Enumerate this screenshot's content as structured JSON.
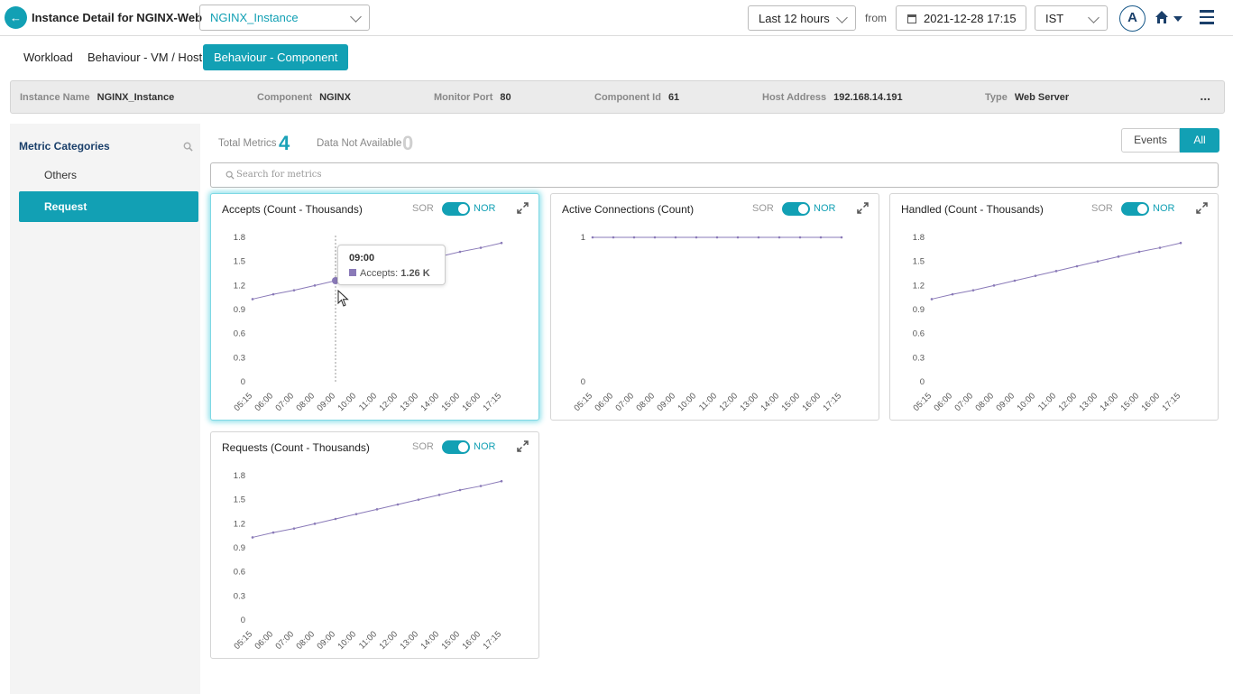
{
  "header": {
    "page_title": "Instance Detail for NGINX-Web",
    "instance_select": "NGINX_Instance",
    "time_range": "Last 12 hours",
    "from_label": "from",
    "from_date": "2021-12-28 17:15",
    "timezone": "IST",
    "avatar_initial": "A"
  },
  "tabs": [
    {
      "label": "Workload"
    },
    {
      "label": "Behaviour - VM / Host"
    },
    {
      "label": "Behaviour - Component"
    }
  ],
  "info": [
    {
      "label": "Instance Name",
      "value": "NGINX_Instance"
    },
    {
      "label": "Component",
      "value": "NGINX"
    },
    {
      "label": "Monitor Port",
      "value": "80"
    },
    {
      "label": "Component Id",
      "value": "61"
    },
    {
      "label": "Host Address",
      "value": "192.168.14.191"
    },
    {
      "label": "Type",
      "value": "Web Server"
    }
  ],
  "info_more": "...",
  "sidebar": {
    "title": "Metric Categories",
    "items": [
      {
        "label": "Others"
      },
      {
        "label": "Request"
      }
    ]
  },
  "summary": {
    "total_label": "Total Metrics",
    "total_value": "4",
    "na_label": "Data Not Available",
    "na_value": "0"
  },
  "filters": {
    "events": "Events",
    "all": "All"
  },
  "search": {
    "placeholder": "Search for metrics"
  },
  "toggle_labels": {
    "sor": "SOR",
    "nor": "NOR"
  },
  "colors": {
    "accent": "#12a0b4",
    "series": "#8a7ab8",
    "value_accent": "#1aa2b8",
    "na_gray": "#cfcfcf"
  },
  "tooltip": {
    "time": "09:00",
    "series": "Accepts",
    "value": "1.26 K"
  },
  "chart_data": [
    {
      "type": "line",
      "title": "Accepts (Count - Thousands)",
      "x": [
        "05:15",
        "06:00",
        "07:00",
        "08:00",
        "09:00",
        "10:00",
        "11:00",
        "12:00",
        "13:00",
        "14:00",
        "15:00",
        "16:00",
        "17:15"
      ],
      "yticks": [
        "0",
        "0.3",
        "0.6",
        "0.9",
        "1.2",
        "1.5",
        "1.8"
      ],
      "ylim": [
        0,
        1.8
      ],
      "series": [
        {
          "name": "Accepts",
          "values": [
            1.03,
            1.09,
            1.14,
            1.2,
            1.26,
            1.32,
            1.38,
            1.44,
            1.5,
            1.56,
            1.62,
            1.67,
            1.73
          ]
        }
      ],
      "highlight_index": 4
    },
    {
      "type": "line",
      "title": "Active Connections (Count)",
      "x": [
        "05:15",
        "06:00",
        "07:00",
        "08:00",
        "09:00",
        "10:00",
        "11:00",
        "12:00",
        "13:00",
        "14:00",
        "15:00",
        "16:00",
        "17:15"
      ],
      "yticks": [
        "0",
        "1"
      ],
      "ylim": [
        0,
        1
      ],
      "series": [
        {
          "name": "",
          "values": [
            1,
            1,
            1,
            1,
            1,
            1,
            1,
            1,
            1,
            1,
            1,
            1,
            1
          ]
        }
      ]
    },
    {
      "type": "line",
      "title": "Handled (Count - Thousands)",
      "x": [
        "05:15",
        "06:00",
        "07:00",
        "08:00",
        "09:00",
        "10:00",
        "11:00",
        "12:00",
        "13:00",
        "14:00",
        "15:00",
        "16:00",
        "17:15"
      ],
      "yticks": [
        "0",
        "0.3",
        "0.6",
        "0.9",
        "1.2",
        "1.5",
        "1.8"
      ],
      "ylim": [
        0,
        1.8
      ],
      "series": [
        {
          "name": "",
          "values": [
            1.03,
            1.09,
            1.14,
            1.2,
            1.26,
            1.32,
            1.38,
            1.44,
            1.5,
            1.56,
            1.62,
            1.67,
            1.73
          ]
        }
      ]
    },
    {
      "type": "line",
      "title": "Requests (Count - Thousands)",
      "x": [
        "05:15",
        "06:00",
        "07:00",
        "08:00",
        "09:00",
        "10:00",
        "11:00",
        "12:00",
        "13:00",
        "14:00",
        "15:00",
        "16:00",
        "17:15"
      ],
      "yticks": [
        "0",
        "0.3",
        "0.6",
        "0.9",
        "1.2",
        "1.5",
        "1.8"
      ],
      "ylim": [
        0,
        1.8
      ],
      "series": [
        {
          "name": "",
          "values": [
            1.03,
            1.09,
            1.14,
            1.2,
            1.26,
            1.32,
            1.38,
            1.44,
            1.5,
            1.56,
            1.62,
            1.67,
            1.73
          ]
        }
      ]
    }
  ]
}
